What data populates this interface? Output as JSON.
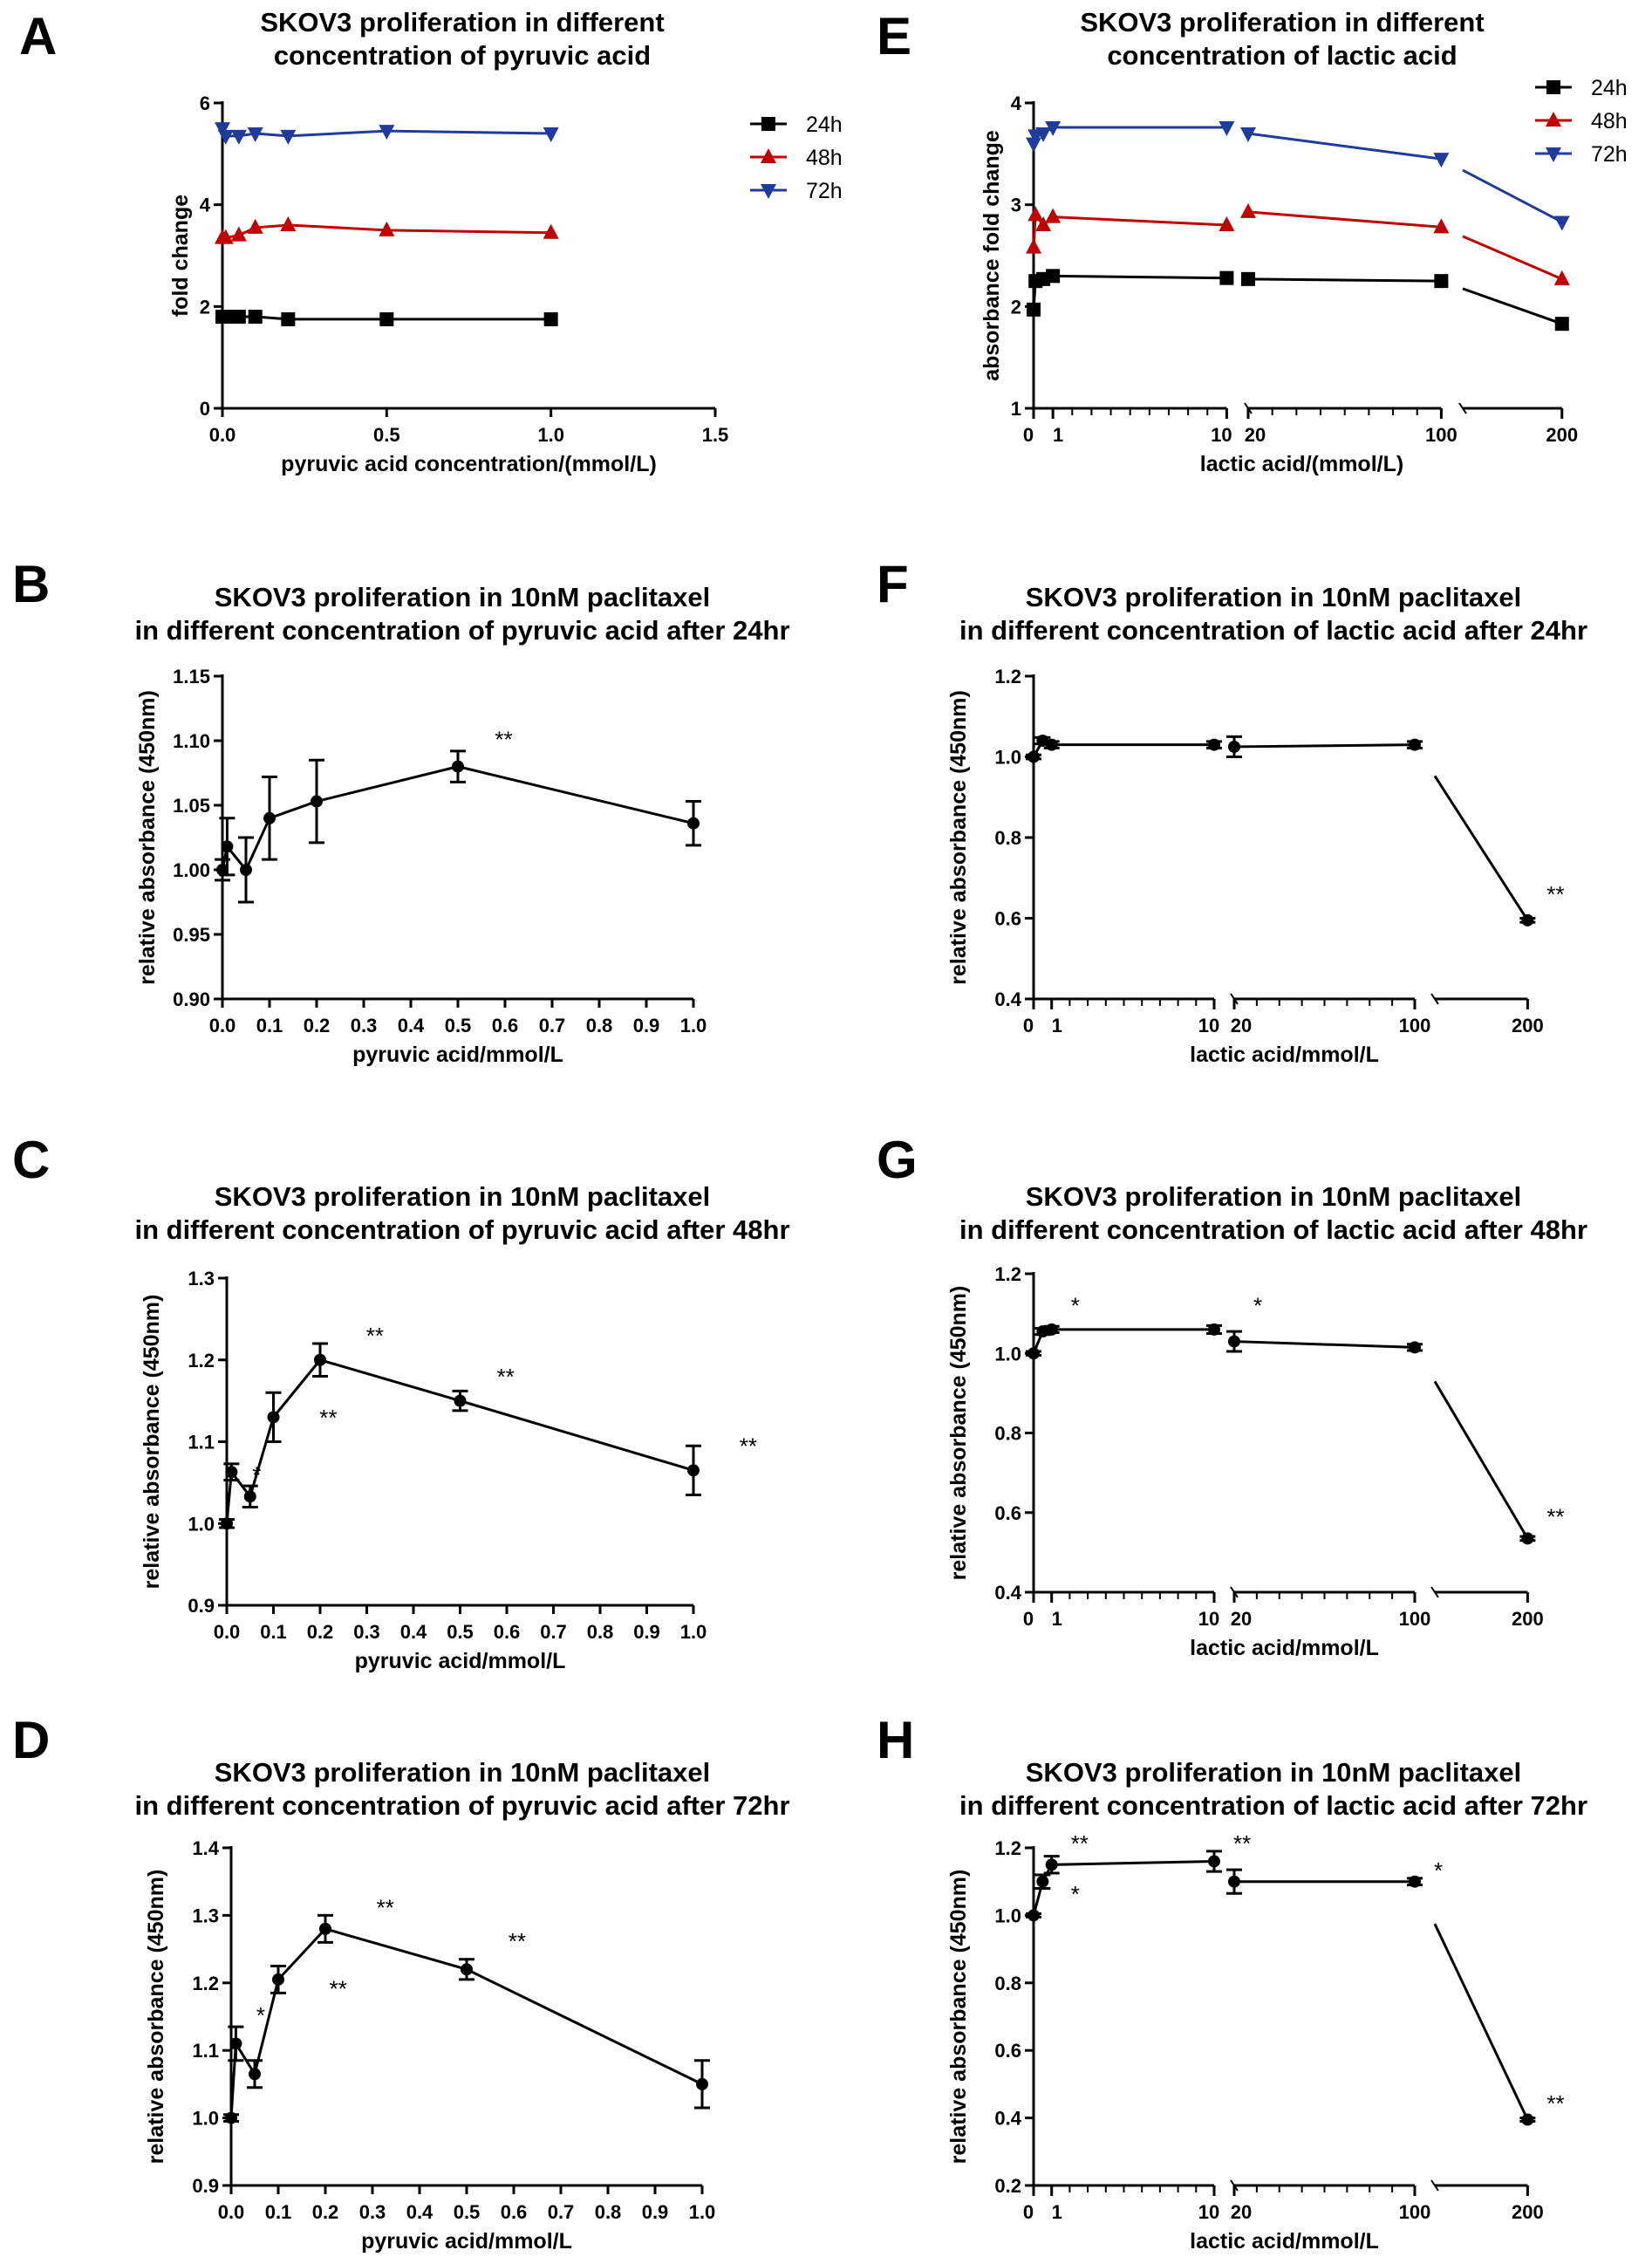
{
  "figure_labels": [
    "A",
    "B",
    "C",
    "D",
    "E",
    "F",
    "G",
    "H"
  ],
  "chart_data": [
    {
      "id": "A",
      "type": "line",
      "title": [
        "SKOV3 proliferation in different",
        "concentration of pyruvic acid"
      ],
      "xlabel": "pyruvic acid concentration/(mmol/L)",
      "ylabel": "fold change",
      "x_scale": "linear",
      "xlim": [
        0,
        1.5
      ],
      "ylim": [
        0,
        6
      ],
      "x_ticks": [
        0.0,
        0.5,
        1.0,
        1.5
      ],
      "x_tick_labels": [
        "0.0",
        "0.5",
        "1.0",
        "1.5"
      ],
      "y_ticks": [
        0,
        2,
        4,
        6
      ],
      "y_tick_labels": [
        "0",
        "2",
        "4",
        "6"
      ],
      "legend": "top-right",
      "series": [
        {
          "name": "24h",
          "color": "#000000",
          "marker": "square",
          "x": [
            0,
            0.01,
            0.05,
            0.1,
            0.2,
            0.5,
            1.0
          ],
          "y": [
            1.8,
            1.8,
            1.8,
            1.8,
            1.75,
            1.75,
            1.75
          ]
        },
        {
          "name": "48h",
          "color": "#c00000",
          "marker": "triangle-up",
          "x": [
            0,
            0.01,
            0.05,
            0.1,
            0.2,
            0.5,
            1.0
          ],
          "y": [
            3.35,
            3.35,
            3.4,
            3.55,
            3.6,
            3.5,
            3.45
          ]
        },
        {
          "name": "72h",
          "color": "#1f3b9c",
          "marker": "triangle-down",
          "x": [
            0,
            0.01,
            0.05,
            0.1,
            0.2,
            0.5,
            1.0
          ],
          "y": [
            5.5,
            5.35,
            5.35,
            5.4,
            5.35,
            5.45,
            5.4
          ]
        }
      ],
      "annotations": []
    },
    {
      "id": "B",
      "type": "line",
      "title": [
        "SKOV3 proliferation in 10nM paclitaxel",
        "in different concentration of pyruvic acid after 24hr"
      ],
      "xlabel": "pyruvic acid/mmol/L",
      "ylabel": "relative absorbance (450nm)",
      "x_scale": "linear",
      "xlim": [
        0,
        1.0
      ],
      "ylim": [
        0.9,
        1.15
      ],
      "x_ticks": [
        0.0,
        0.1,
        0.2,
        0.3,
        0.4,
        0.5,
        0.6,
        0.7,
        0.8,
        0.9,
        1.0
      ],
      "x_tick_labels": [
        "0.0",
        "0.1",
        "0.2",
        "0.3",
        "0.4",
        "0.5",
        "0.6",
        "0.7",
        "0.8",
        "0.9",
        "1.0"
      ],
      "y_ticks": [
        0.9,
        0.95,
        1.0,
        1.05,
        1.1,
        1.15
      ],
      "y_tick_labels": [
        "0.90",
        "0.95",
        "1.00",
        "1.05",
        "1.10",
        "1.15"
      ],
      "series": [
        {
          "name": "",
          "color": "#000000",
          "marker": "circle",
          "x": [
            0,
            0.01,
            0.05,
            0.1,
            0.2,
            0.5,
            1.0
          ],
          "y": [
            1.0,
            1.018,
            1.0,
            1.04,
            1.053,
            1.08,
            1.036
          ],
          "err": [
            0.008,
            0.022,
            0.025,
            0.032,
            0.032,
            0.012,
            0.017
          ]
        }
      ],
      "annotations": [
        {
          "text": "**",
          "x": 0.56,
          "y": 1.095
        }
      ]
    },
    {
      "id": "C",
      "type": "line",
      "title": [
        "SKOV3 proliferation in 10nM paclitaxel",
        "in different concentration of pyruvic acid after 48hr"
      ],
      "xlabel": "pyruvic acid/mmol/L",
      "ylabel": "relative absorbance (450nm)",
      "x_scale": "linear",
      "xlim": [
        0,
        1.0
      ],
      "ylim": [
        0.9,
        1.3
      ],
      "x_ticks": [
        0.0,
        0.1,
        0.2,
        0.3,
        0.4,
        0.5,
        0.6,
        0.7,
        0.8,
        0.9,
        1.0
      ],
      "x_tick_labels": [
        "0.0",
        "0.1",
        "0.2",
        "0.3",
        "0.4",
        "0.5",
        "0.6",
        "0.7",
        "0.8",
        "0.9",
        "1.0"
      ],
      "y_ticks": [
        0.9,
        1.0,
        1.1,
        1.2,
        1.3
      ],
      "y_tick_labels": [
        "0.9",
        "1.0",
        "1.1",
        "1.2",
        "1.3"
      ],
      "series": [
        {
          "name": "",
          "color": "#000000",
          "marker": "circle",
          "x": [
            0,
            0.01,
            0.05,
            0.1,
            0.2,
            0.5,
            1.0
          ],
          "y": [
            1.0,
            1.063,
            1.033,
            1.13,
            1.2,
            1.15,
            1.065
          ],
          "err": [
            0.005,
            0.01,
            0.013,
            0.03,
            0.02,
            0.012,
            0.03
          ]
        }
      ],
      "annotations": [
        {
          "text": "*",
          "x": 0.036,
          "y": 1.05
        },
        {
          "text": "**",
          "x": 0.18,
          "y": 1.12
        },
        {
          "text": "**",
          "x": 0.28,
          "y": 1.22
        },
        {
          "text": "**",
          "x": 0.56,
          "y": 1.17
        },
        {
          "text": "**",
          "x": 1.08,
          "y": 1.085
        }
      ]
    },
    {
      "id": "D",
      "type": "line",
      "title": [
        "SKOV3 proliferation in 10nM paclitaxel",
        "in different concentration of pyruvic acid after 72hr"
      ],
      "xlabel": "pyruvic acid/mmol/L",
      "ylabel": "relative absorbance (450nm)",
      "x_scale": "linear",
      "xlim": [
        0,
        1.0
      ],
      "ylim": [
        0.9,
        1.4
      ],
      "x_ticks": [
        0.0,
        0.1,
        0.2,
        0.3,
        0.4,
        0.5,
        0.6,
        0.7,
        0.8,
        0.9,
        1.0
      ],
      "x_tick_labels": [
        "0.0",
        "0.1",
        "0.2",
        "0.3",
        "0.4",
        "0.5",
        "0.6",
        "0.7",
        "0.8",
        "0.9",
        "1.0"
      ],
      "y_ticks": [
        0.9,
        1.0,
        1.1,
        1.2,
        1.3,
        1.4
      ],
      "y_tick_labels": [
        "0.9",
        "1.0",
        "1.1",
        "1.2",
        "1.3",
        "1.4"
      ],
      "series": [
        {
          "name": "",
          "color": "#000000",
          "marker": "circle",
          "x": [
            0,
            0.01,
            0.05,
            0.1,
            0.2,
            0.5,
            1.0
          ],
          "y": [
            1.0,
            1.11,
            1.065,
            1.205,
            1.28,
            1.22,
            1.05
          ],
          "err": [
            0.005,
            0.025,
            0.02,
            0.02,
            0.02,
            0.015,
            0.035
          ]
        }
      ],
      "annotations": [
        {
          "text": "*",
          "x": 0.035,
          "y": 1.14
        },
        {
          "text": "**",
          "x": 0.19,
          "y": 1.18
        },
        {
          "text": "**",
          "x": 0.29,
          "y": 1.3
        },
        {
          "text": "**",
          "x": 0.57,
          "y": 1.25
        }
      ]
    },
    {
      "id": "E",
      "type": "line",
      "title": [
        "SKOV3 proliferation in different",
        "concentration of lactic acid"
      ],
      "xlabel": "lactic acid/(mmol/L)",
      "ylabel": "absorbance fold change",
      "x_scale": "broken",
      "ylim": [
        1,
        4
      ],
      "x_segments": [
        {
          "range": [
            0,
            10
          ],
          "ticks": [
            0,
            1,
            10
          ]
        },
        {
          "range": [
            20,
            100
          ],
          "ticks": [
            20,
            100
          ]
        },
        {
          "range": [
            100,
            200
          ],
          "ticks": [
            200
          ]
        }
      ],
      "x_tick_labels": [
        "0",
        "1",
        "10",
        "20",
        "100",
        "200"
      ],
      "y_ticks": [
        1,
        2,
        3,
        4
      ],
      "y_tick_labels": [
        "1",
        "2",
        "3",
        "4"
      ],
      "legend": "top-right",
      "series": [
        {
          "name": "24h",
          "color": "#000000",
          "marker": "square",
          "x": [
            0,
            0.1,
            0.5,
            1,
            10,
            20,
            100,
            200
          ],
          "y": [
            1.97,
            2.25,
            2.27,
            2.3,
            2.28,
            2.27,
            2.25,
            1.83
          ]
        },
        {
          "name": "48h",
          "color": "#c00000",
          "marker": "triangle-up",
          "x": [
            0,
            0.1,
            0.5,
            1,
            10,
            20,
            100,
            200
          ],
          "y": [
            2.58,
            2.9,
            2.8,
            2.88,
            2.8,
            2.93,
            2.78,
            2.27
          ]
        },
        {
          "name": "72h",
          "color": "#1f3b9c",
          "marker": "triangle-down",
          "x": [
            0,
            0.1,
            0.5,
            1,
            10,
            20,
            100,
            200
          ],
          "y": [
            3.6,
            3.68,
            3.7,
            3.76,
            3.76,
            3.7,
            3.45,
            2.83
          ]
        }
      ],
      "annotations": []
    },
    {
      "id": "F",
      "type": "line",
      "title": [
        "SKOV3 proliferation in 10nM paclitaxel",
        "in different concentration of lactic acid after 24hr"
      ],
      "xlabel": "lactic acid/mmol/L",
      "ylabel": "relative absorbance (450nm)",
      "x_scale": "broken",
      "ylim": [
        0.4,
        1.2
      ],
      "x_segments": [
        {
          "range": [
            0,
            10
          ],
          "ticks": [
            0,
            1,
            10
          ]
        },
        {
          "range": [
            20,
            100
          ],
          "ticks": [
            20,
            100
          ]
        },
        {
          "range": [
            100,
            200
          ],
          "ticks": [
            200
          ]
        }
      ],
      "x_tick_labels": [
        "0",
        "1",
        "10",
        "20",
        "100",
        "200"
      ],
      "y_ticks": [
        0.4,
        0.6,
        0.8,
        1.0,
        1.2
      ],
      "y_tick_labels": [
        "0.4",
        "0.6",
        "0.8",
        "1.0",
        "1.2"
      ],
      "series": [
        {
          "name": "",
          "color": "#000000",
          "marker": "circle",
          "x": [
            0,
            0.5,
            1,
            10,
            20,
            100,
            200
          ],
          "y": [
            1.0,
            1.04,
            1.03,
            1.03,
            1.025,
            1.03,
            0.595
          ],
          "err": [
            0.005,
            0.008,
            0.008,
            0.008,
            0.025,
            0.008,
            0.005
          ]
        }
      ],
      "annotations": [
        {
          "text": "**",
          "x": 200,
          "y": 0.64
        }
      ]
    },
    {
      "id": "G",
      "type": "line",
      "title": [
        "SKOV3 proliferation in 10nM paclitaxel",
        "in different concentration of lactic acid after 48hr"
      ],
      "xlabel": "lactic acid/mmol/L",
      "ylabel": "relative absorbance (450nm)",
      "x_scale": "broken",
      "ylim": [
        0.4,
        1.2
      ],
      "x_segments": [
        {
          "range": [
            0,
            10
          ],
          "ticks": [
            0,
            1,
            10
          ]
        },
        {
          "range": [
            20,
            100
          ],
          "ticks": [
            20,
            100
          ]
        },
        {
          "range": [
            100,
            200
          ],
          "ticks": [
            200
          ]
        }
      ],
      "x_tick_labels": [
        "0",
        "1",
        "10",
        "20",
        "100",
        "200"
      ],
      "y_ticks": [
        0.4,
        0.6,
        0.8,
        1.0,
        1.2
      ],
      "y_tick_labels": [
        "0.4",
        "0.6",
        "0.8",
        "1.0",
        "1.2"
      ],
      "series": [
        {
          "name": "",
          "color": "#000000",
          "marker": "circle",
          "x": [
            0,
            0.5,
            1,
            10,
            20,
            100,
            200
          ],
          "y": [
            1.0,
            1.055,
            1.06,
            1.06,
            1.03,
            1.015,
            0.535
          ],
          "err": [
            0.005,
            0.008,
            0.008,
            0.01,
            0.025,
            0.008,
            0.005
          ]
        }
      ],
      "annotations": [
        {
          "text": "*",
          "x": 1,
          "y": 1.1
        },
        {
          "text": "*",
          "x": 20,
          "y": 1.1
        },
        {
          "text": "**",
          "x": 200,
          "y": 0.57
        }
      ]
    },
    {
      "id": "H",
      "type": "line",
      "title": [
        "SKOV3 proliferation in 10nM paclitaxel",
        "in different concentration of lactic acid after 72hr"
      ],
      "xlabel": "lactic acid/mmol/L",
      "ylabel": "relative absorbance (450nm)",
      "x_scale": "broken",
      "ylim": [
        0.2,
        1.2
      ],
      "x_segments": [
        {
          "range": [
            0,
            10
          ],
          "ticks": [
            0,
            1,
            10
          ]
        },
        {
          "range": [
            20,
            100
          ],
          "ticks": [
            20,
            100
          ]
        },
        {
          "range": [
            100,
            200
          ],
          "ticks": [
            200
          ]
        }
      ],
      "x_tick_labels": [
        "0",
        "1",
        "10",
        "20",
        "100",
        "200"
      ],
      "y_ticks": [
        0.2,
        0.4,
        0.6,
        0.8,
        1.0,
        1.2
      ],
      "y_tick_labels": [
        "0.2",
        "0.4",
        "0.6",
        "0.8",
        "1.0",
        "1.2"
      ],
      "series": [
        {
          "name": "",
          "color": "#000000",
          "marker": "circle",
          "x": [
            0,
            0.5,
            1,
            10,
            20,
            100,
            200
          ],
          "y": [
            1.0,
            1.1,
            1.15,
            1.16,
            1.1,
            1.1,
            0.395
          ],
          "err": [
            0.005,
            0.02,
            0.025,
            0.03,
            0.035,
            0.01,
            0.005
          ]
        }
      ],
      "annotations": [
        {
          "text": "*",
          "x": 1,
          "y": 1.04
        },
        {
          "text": "**",
          "x": 1,
          "y": 1.19
        },
        {
          "text": "**",
          "x": 10,
          "y": 1.19
        },
        {
          "text": "*",
          "x": 100,
          "y": 1.11
        },
        {
          "text": "**",
          "x": 200,
          "y": 0.42
        }
      ]
    }
  ]
}
